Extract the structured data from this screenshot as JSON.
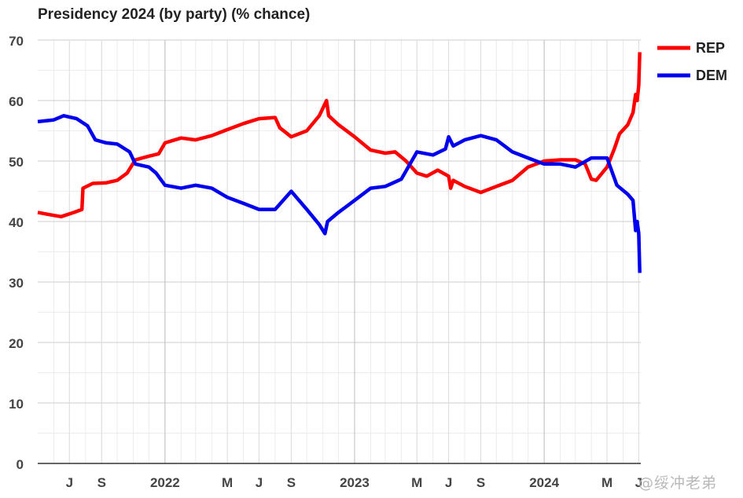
{
  "chart_data": {
    "type": "line",
    "title": "Presidency 2024 (by party) (% chance)",
    "xlabel": "",
    "ylabel": "",
    "ylim": [
      0,
      70
    ],
    "yticks": [
      0,
      10,
      20,
      30,
      40,
      50,
      60,
      70
    ],
    "xlim": [
      "2021-05-01",
      "2024-07-05"
    ],
    "xticks": [
      {
        "date": "2021-07-01",
        "label": "J"
      },
      {
        "date": "2021-09-01",
        "label": "S"
      },
      {
        "date": "2022-01-01",
        "label": "2022"
      },
      {
        "date": "2022-05-01",
        "label": "M"
      },
      {
        "date": "2022-07-01",
        "label": "J"
      },
      {
        "date": "2022-09-01",
        "label": "S"
      },
      {
        "date": "2023-01-01",
        "label": "2023"
      },
      {
        "date": "2023-05-01",
        "label": "M"
      },
      {
        "date": "2023-07-01",
        "label": "J"
      },
      {
        "date": "2023-09-01",
        "label": "S"
      },
      {
        "date": "2024-01-01",
        "label": "2024"
      },
      {
        "date": "2024-05-01",
        "label": "M"
      },
      {
        "date": "2024-07-01",
        "label": "J"
      }
    ],
    "grid": true,
    "legend_position": "top-right",
    "series": [
      {
        "name": "REP",
        "color": "#ff0000",
        "points": [
          [
            "2021-05-01",
            41.5
          ],
          [
            "2021-05-20",
            41.2
          ],
          [
            "2021-06-15",
            40.8
          ],
          [
            "2021-07-10",
            41.5
          ],
          [
            "2021-07-25",
            42.0
          ],
          [
            "2021-07-27",
            45.5
          ],
          [
            "2021-08-15",
            46.3
          ],
          [
            "2021-09-10",
            46.4
          ],
          [
            "2021-10-01",
            46.8
          ],
          [
            "2021-10-20",
            48.0
          ],
          [
            "2021-11-05",
            50.2
          ],
          [
            "2021-12-01",
            50.8
          ],
          [
            "2021-12-20",
            51.2
          ],
          [
            "2022-01-01",
            53.0
          ],
          [
            "2022-02-01",
            53.8
          ],
          [
            "2022-03-01",
            53.5
          ],
          [
            "2022-04-01",
            54.2
          ],
          [
            "2022-05-01",
            55.2
          ],
          [
            "2022-06-01",
            56.2
          ],
          [
            "2022-07-01",
            57.0
          ],
          [
            "2022-08-01",
            57.2
          ],
          [
            "2022-08-10",
            55.5
          ],
          [
            "2022-09-01",
            54.0
          ],
          [
            "2022-10-01",
            55.0
          ],
          [
            "2022-10-25",
            57.5
          ],
          [
            "2022-11-08",
            60.0
          ],
          [
            "2022-11-12",
            57.5
          ],
          [
            "2022-12-01",
            56.0
          ],
          [
            "2023-01-01",
            54.0
          ],
          [
            "2023-02-01",
            51.8
          ],
          [
            "2023-03-01",
            51.3
          ],
          [
            "2023-03-20",
            51.5
          ],
          [
            "2023-04-10",
            50.0
          ],
          [
            "2023-05-01",
            48.0
          ],
          [
            "2023-05-20",
            47.5
          ],
          [
            "2023-06-10",
            48.5
          ],
          [
            "2023-07-01",
            47.5
          ],
          [
            "2023-07-05",
            45.5
          ],
          [
            "2023-07-10",
            46.8
          ],
          [
            "2023-08-01",
            45.8
          ],
          [
            "2023-09-01",
            44.8
          ],
          [
            "2023-10-01",
            45.8
          ],
          [
            "2023-11-01",
            46.8
          ],
          [
            "2023-12-01",
            49.0
          ],
          [
            "2024-01-01",
            50.0
          ],
          [
            "2024-02-01",
            50.2
          ],
          [
            "2024-03-01",
            50.2
          ],
          [
            "2024-03-20",
            49.5
          ],
          [
            "2024-04-01",
            47.0
          ],
          [
            "2024-04-10",
            46.8
          ],
          [
            "2024-05-01",
            49.0
          ],
          [
            "2024-05-15",
            52.0
          ],
          [
            "2024-05-25",
            54.5
          ],
          [
            "2024-06-10",
            56.0
          ],
          [
            "2024-06-20",
            58.0
          ],
          [
            "2024-06-25",
            61.0
          ],
          [
            "2024-06-28",
            60.0
          ],
          [
            "2024-07-01",
            62.5
          ],
          [
            "2024-07-03",
            68.0
          ]
        ]
      },
      {
        "name": "DEM",
        "color": "#0000ee",
        "points": [
          [
            "2021-05-01",
            56.5
          ],
          [
            "2021-06-01",
            56.8
          ],
          [
            "2021-06-20",
            57.5
          ],
          [
            "2021-07-15",
            57.0
          ],
          [
            "2021-08-05",
            55.8
          ],
          [
            "2021-08-20",
            53.5
          ],
          [
            "2021-09-10",
            53.0
          ],
          [
            "2021-10-01",
            52.8
          ],
          [
            "2021-10-25",
            51.5
          ],
          [
            "2021-11-05",
            49.5
          ],
          [
            "2021-12-01",
            49.0
          ],
          [
            "2021-12-15",
            48.0
          ],
          [
            "2022-01-01",
            46.0
          ],
          [
            "2022-02-01",
            45.5
          ],
          [
            "2022-03-01",
            46.0
          ],
          [
            "2022-04-01",
            45.5
          ],
          [
            "2022-05-01",
            44.0
          ],
          [
            "2022-06-01",
            43.0
          ],
          [
            "2022-07-01",
            42.0
          ],
          [
            "2022-08-01",
            42.0
          ],
          [
            "2022-09-01",
            45.0
          ],
          [
            "2022-10-01",
            42.0
          ],
          [
            "2022-10-25",
            39.5
          ],
          [
            "2022-11-05",
            38.0
          ],
          [
            "2022-11-10",
            40.0
          ],
          [
            "2022-12-01",
            41.5
          ],
          [
            "2023-01-01",
            43.5
          ],
          [
            "2023-02-01",
            45.5
          ],
          [
            "2023-03-01",
            45.8
          ],
          [
            "2023-04-01",
            47.0
          ],
          [
            "2023-05-01",
            51.5
          ],
          [
            "2023-06-01",
            51.0
          ],
          [
            "2023-06-25",
            52.0
          ],
          [
            "2023-07-01",
            54.0
          ],
          [
            "2023-07-10",
            52.5
          ],
          [
            "2023-08-01",
            53.5
          ],
          [
            "2023-09-01",
            54.2
          ],
          [
            "2023-10-01",
            53.5
          ],
          [
            "2023-11-01",
            51.5
          ],
          [
            "2023-12-01",
            50.5
          ],
          [
            "2024-01-01",
            49.5
          ],
          [
            "2024-02-01",
            49.5
          ],
          [
            "2024-03-01",
            49.0
          ],
          [
            "2024-04-01",
            50.5
          ],
          [
            "2024-05-01",
            50.5
          ],
          [
            "2024-05-20",
            46.0
          ],
          [
            "2024-06-10",
            44.5
          ],
          [
            "2024-06-20",
            43.5
          ],
          [
            "2024-06-25",
            38.5
          ],
          [
            "2024-06-28",
            40.0
          ],
          [
            "2024-07-01",
            38.0
          ],
          [
            "2024-07-03",
            31.5
          ]
        ]
      }
    ]
  },
  "watermark": "@绥冲老弟"
}
